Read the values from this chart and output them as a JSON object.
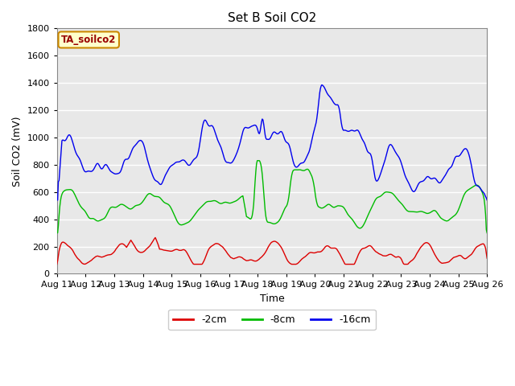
{
  "title": "Set B Soil CO2",
  "xlabel": "Time",
  "ylabel": "Soil CO2 (mV)",
  "ylim": [
    0,
    1800
  ],
  "annotation": "TA_soilco2",
  "plot_bg": "#e8e8e8",
  "fig_bg": "#ffffff",
  "grid_color": "#ffffff",
  "x_tick_labels": [
    "Aug 11",
    "Aug 12",
    "Aug 13",
    "Aug 14",
    "Aug 15",
    "Aug 16",
    "Aug 17",
    "Aug 18",
    "Aug 19",
    "Aug 20",
    "Aug 21",
    "Aug 22",
    "Aug 23",
    "Aug 24",
    "Aug 25",
    "Aug 26"
  ],
  "series": {
    "2cm": {
      "color": "#dd0000",
      "label": "-2cm"
    },
    "8cm": {
      "color": "#00bb00",
      "label": "-8cm"
    },
    "16cm": {
      "color": "#0000ee",
      "label": "-16cm"
    }
  }
}
